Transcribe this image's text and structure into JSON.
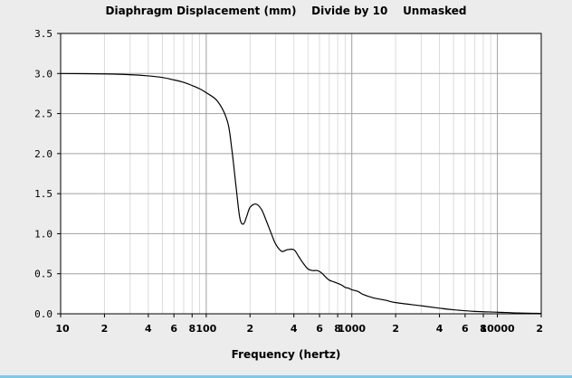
{
  "chart_data": {
    "type": "line",
    "title": "Diaphragm Displacement (mm)    Divide by 10    Unmasked",
    "xlabel": "Frequency (hertz)",
    "ylabel": "",
    "x_scale": "log",
    "xlim": [
      10,
      20000
    ],
    "ylim": [
      0,
      3.5
    ],
    "grid": true,
    "y_ticks": [
      {
        "value": 0.0,
        "label": "0.0"
      },
      {
        "value": 0.5,
        "label": "0.5"
      },
      {
        "value": 1.0,
        "label": "1.0"
      },
      {
        "value": 1.5,
        "label": "1.5"
      },
      {
        "value": 2.0,
        "label": "2.0"
      },
      {
        "value": 2.5,
        "label": "2.5"
      },
      {
        "value": 3.0,
        "label": "3.0"
      },
      {
        "value": 3.5,
        "label": "3.5"
      }
    ],
    "x_ticks": [
      {
        "value": 10,
        "label": "10"
      },
      {
        "value": 20,
        "label": "2"
      },
      {
        "value": 40,
        "label": "4"
      },
      {
        "value": 60,
        "label": "6"
      },
      {
        "value": 80,
        "label": "8"
      },
      {
        "value": 100,
        "label": "100"
      },
      {
        "value": 200,
        "label": "2"
      },
      {
        "value": 400,
        "label": "4"
      },
      {
        "value": 600,
        "label": "6"
      },
      {
        "value": 800,
        "label": "8"
      },
      {
        "value": 1000,
        "label": "1000"
      },
      {
        "value": 2000,
        "label": "2"
      },
      {
        "value": 4000,
        "label": "4"
      },
      {
        "value": 6000,
        "label": "6"
      },
      {
        "value": 8000,
        "label": "8"
      },
      {
        "value": 10000,
        "label": "10000"
      },
      {
        "value": 20000,
        "label": "2"
      }
    ],
    "series": [
      {
        "name": "Diaphragm Displacement",
        "color": "#000000",
        "x": [
          10,
          20,
          30,
          40,
          50,
          60,
          70,
          80,
          90,
          100,
          120,
          140,
          150,
          160,
          170,
          180,
          190,
          200,
          220,
          240,
          260,
          280,
          300,
          330,
          360,
          400,
          430,
          460,
          500,
          540,
          580,
          620,
          660,
          700,
          750,
          800,
          850,
          900,
          950,
          1000,
          1100,
          1200,
          1400,
          1700,
          2000,
          3000,
          4000,
          5000,
          7000,
          10000,
          14000,
          20000
        ],
        "y": [
          3.0,
          2.995,
          2.985,
          2.97,
          2.95,
          2.92,
          2.89,
          2.85,
          2.81,
          2.76,
          2.65,
          2.4,
          2.05,
          1.6,
          1.2,
          1.12,
          1.22,
          1.33,
          1.37,
          1.3,
          1.15,
          1.0,
          0.87,
          0.78,
          0.8,
          0.8,
          0.72,
          0.64,
          0.56,
          0.54,
          0.54,
          0.51,
          0.46,
          0.42,
          0.4,
          0.38,
          0.36,
          0.33,
          0.32,
          0.3,
          0.28,
          0.24,
          0.2,
          0.17,
          0.14,
          0.1,
          0.07,
          0.05,
          0.03,
          0.02,
          0.01,
          0.005
        ]
      }
    ]
  }
}
